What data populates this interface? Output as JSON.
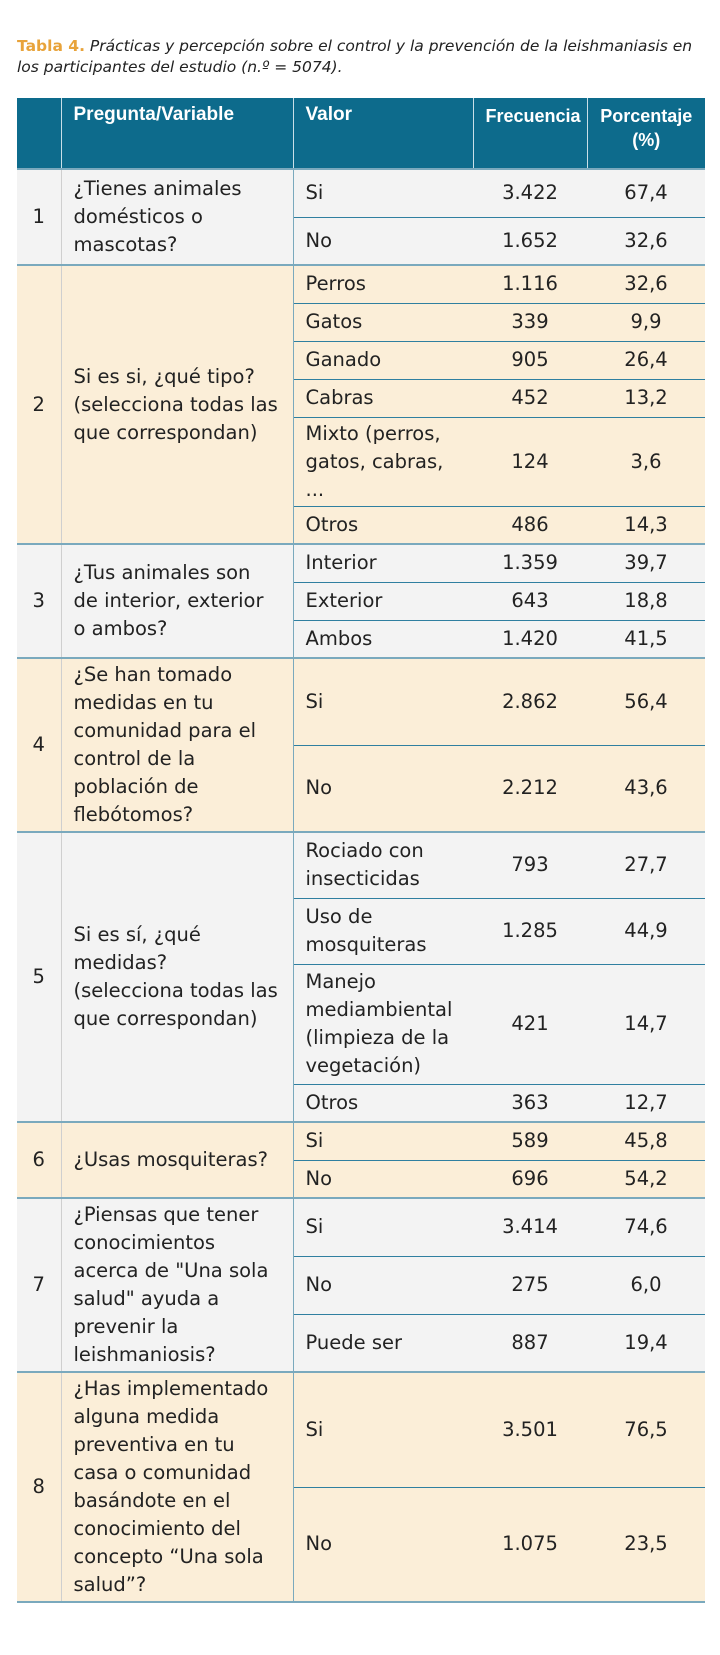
{
  "caption": {
    "label": "Tabla 4.",
    "text": "Prácticas y percepción sobre el control y la prevención de la leishmaniasis en los participantes del estudio (n.º = 5074)."
  },
  "headers": [
    "",
    "Pregunta/Variable",
    "Valor",
    "Frecuencia",
    "Porcentaje (%)"
  ],
  "groups": [
    {
      "num": "1",
      "question": "¿Tienes animales domésticos o mascotas?",
      "rows": [
        {
          "valor": "Si",
          "frecuencia": "3.422",
          "porcentaje": "67,4"
        },
        {
          "valor": "No",
          "frecuencia": "1.652",
          "porcentaje": "32,6"
        }
      ]
    },
    {
      "num": "2",
      "question": "Si es si, ¿qué tipo? (selecciona todas las que correspondan)",
      "rows": [
        {
          "valor": "Perros",
          "frecuencia": "1.116",
          "porcentaje": "32,6"
        },
        {
          "valor": "Gatos",
          "frecuencia": "339",
          "porcentaje": "9,9"
        },
        {
          "valor": "Ganado",
          "frecuencia": "905",
          "porcentaje": "26,4"
        },
        {
          "valor": "Cabras",
          "frecuencia": "452",
          "porcentaje": "13,2"
        },
        {
          "valor": "Mixto (perros, gatos, cabras, ...",
          "frecuencia": "124",
          "porcentaje": "3,6"
        },
        {
          "valor": "Otros",
          "frecuencia": "486",
          "porcentaje": "14,3"
        }
      ]
    },
    {
      "num": "3",
      "question": "¿Tus animales son de interior, exterior o ambos?",
      "rows": [
        {
          "valor": "Interior",
          "frecuencia": "1.359",
          "porcentaje": "39,7"
        },
        {
          "valor": "Exterior",
          "frecuencia": "643",
          "porcentaje": "18,8"
        },
        {
          "valor": "Ambos",
          "frecuencia": "1.420",
          "porcentaje": "41,5"
        }
      ]
    },
    {
      "num": "4",
      "question": "¿Se han tomado medidas en tu comunidad para el control de la población de flebótomos?",
      "rows": [
        {
          "valor": "Si",
          "frecuencia": "2.862",
          "porcentaje": "56,4"
        },
        {
          "valor": "No",
          "frecuencia": "2.212",
          "porcentaje": "43,6"
        }
      ]
    },
    {
      "num": "5",
      "question": "Si es sí, ¿qué medidas? (selecciona todas las que correspondan)",
      "rows": [
        {
          "valor": "Rociado con insecticidas",
          "frecuencia": "793",
          "porcentaje": "27,7"
        },
        {
          "valor": "Uso de mosquiteras",
          "frecuencia": "1.285",
          "porcentaje": "44,9"
        },
        {
          "valor": "Manejo mediambiental (limpieza de la vegetación)",
          "frecuencia": "421",
          "porcentaje": "14,7"
        },
        {
          "valor": "Otros",
          "frecuencia": "363",
          "porcentaje": "12,7"
        }
      ]
    },
    {
      "num": "6",
      "question": "¿Usas mosquiteras?",
      "rows": [
        {
          "valor": "Si",
          "frecuencia": "589",
          "porcentaje": "45,8"
        },
        {
          "valor": "No",
          "frecuencia": "696",
          "porcentaje": "54,2"
        }
      ]
    },
    {
      "num": "7",
      "question": "¿Piensas que tener conocimientos acerca de \"Una sola salud\" ayuda a prevenir la leishmaniosis?",
      "rows": [
        {
          "valor": "Si",
          "frecuencia": "3.414",
          "porcentaje": "74,6"
        },
        {
          "valor": "No",
          "frecuencia": "275",
          "porcentaje": "6,0"
        },
        {
          "valor": "Puede ser",
          "frecuencia": "887",
          "porcentaje": "19,4"
        }
      ]
    },
    {
      "num": "8",
      "question": "¿Has implementado alguna medida preventiva en tu casa o comunidad basándote en el conocimiento del concepto “Una sola salud”?",
      "rows": [
        {
          "valor": "Si",
          "frecuencia": "3.501",
          "porcentaje": "76,5"
        },
        {
          "valor": "No",
          "frecuencia": "1.075",
          "porcentaje": "23,5"
        }
      ]
    }
  ]
}
